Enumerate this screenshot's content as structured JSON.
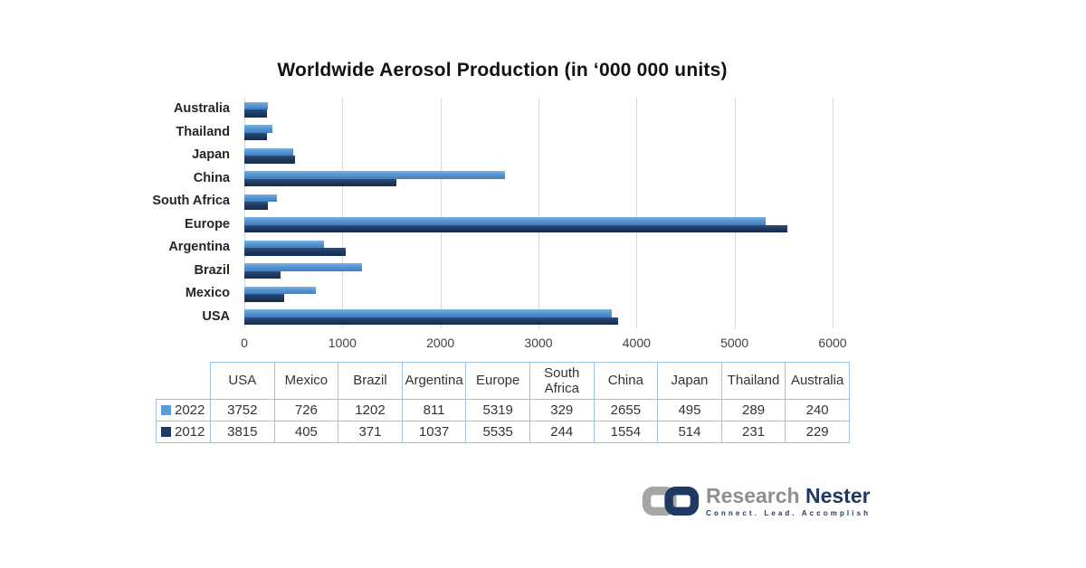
{
  "title": "Worldwide Aerosol Production (in ‘000 000 units)",
  "chart_data": {
    "type": "bar",
    "orientation": "horizontal",
    "title": "Worldwide Aerosol Production (in ‘000 000 units)",
    "categories": [
      "USA",
      "Mexico",
      "Brazil",
      "Argentina",
      "Europe",
      "South Africa",
      "China",
      "Japan",
      "Thailand",
      "Australia"
    ],
    "series": [
      {
        "name": "2022",
        "color": "#5b9bd5",
        "values": [
          3752,
          726,
          1202,
          811,
          5319,
          329,
          2655,
          495,
          289,
          240
        ]
      },
      {
        "name": "2012",
        "color": "#1f3864",
        "values": [
          3815,
          405,
          371,
          1037,
          5535,
          244,
          1554,
          514,
          231,
          229
        ]
      }
    ],
    "axis_order_top_to_bottom": [
      "Australia",
      "Thailand",
      "Japan",
      "China",
      "South Africa",
      "Europe",
      "Argentina",
      "Brazil",
      "Mexico",
      "USA"
    ],
    "xlim": [
      0,
      6000
    ],
    "x_ticks": [
      0,
      1000,
      2000,
      3000,
      4000,
      5000,
      6000
    ],
    "grid": true,
    "legend_position": "data-table-left",
    "gridline_color": "#d9d9d9",
    "table_border_color": "#9dc3e6"
  },
  "logo": {
    "brand_primary": "Research",
    "brand_secondary": "Nester",
    "tagline": "Connect. Lead. Accomplish",
    "link_gray": "#a6a6a6",
    "link_navy": "#1f3864"
  }
}
